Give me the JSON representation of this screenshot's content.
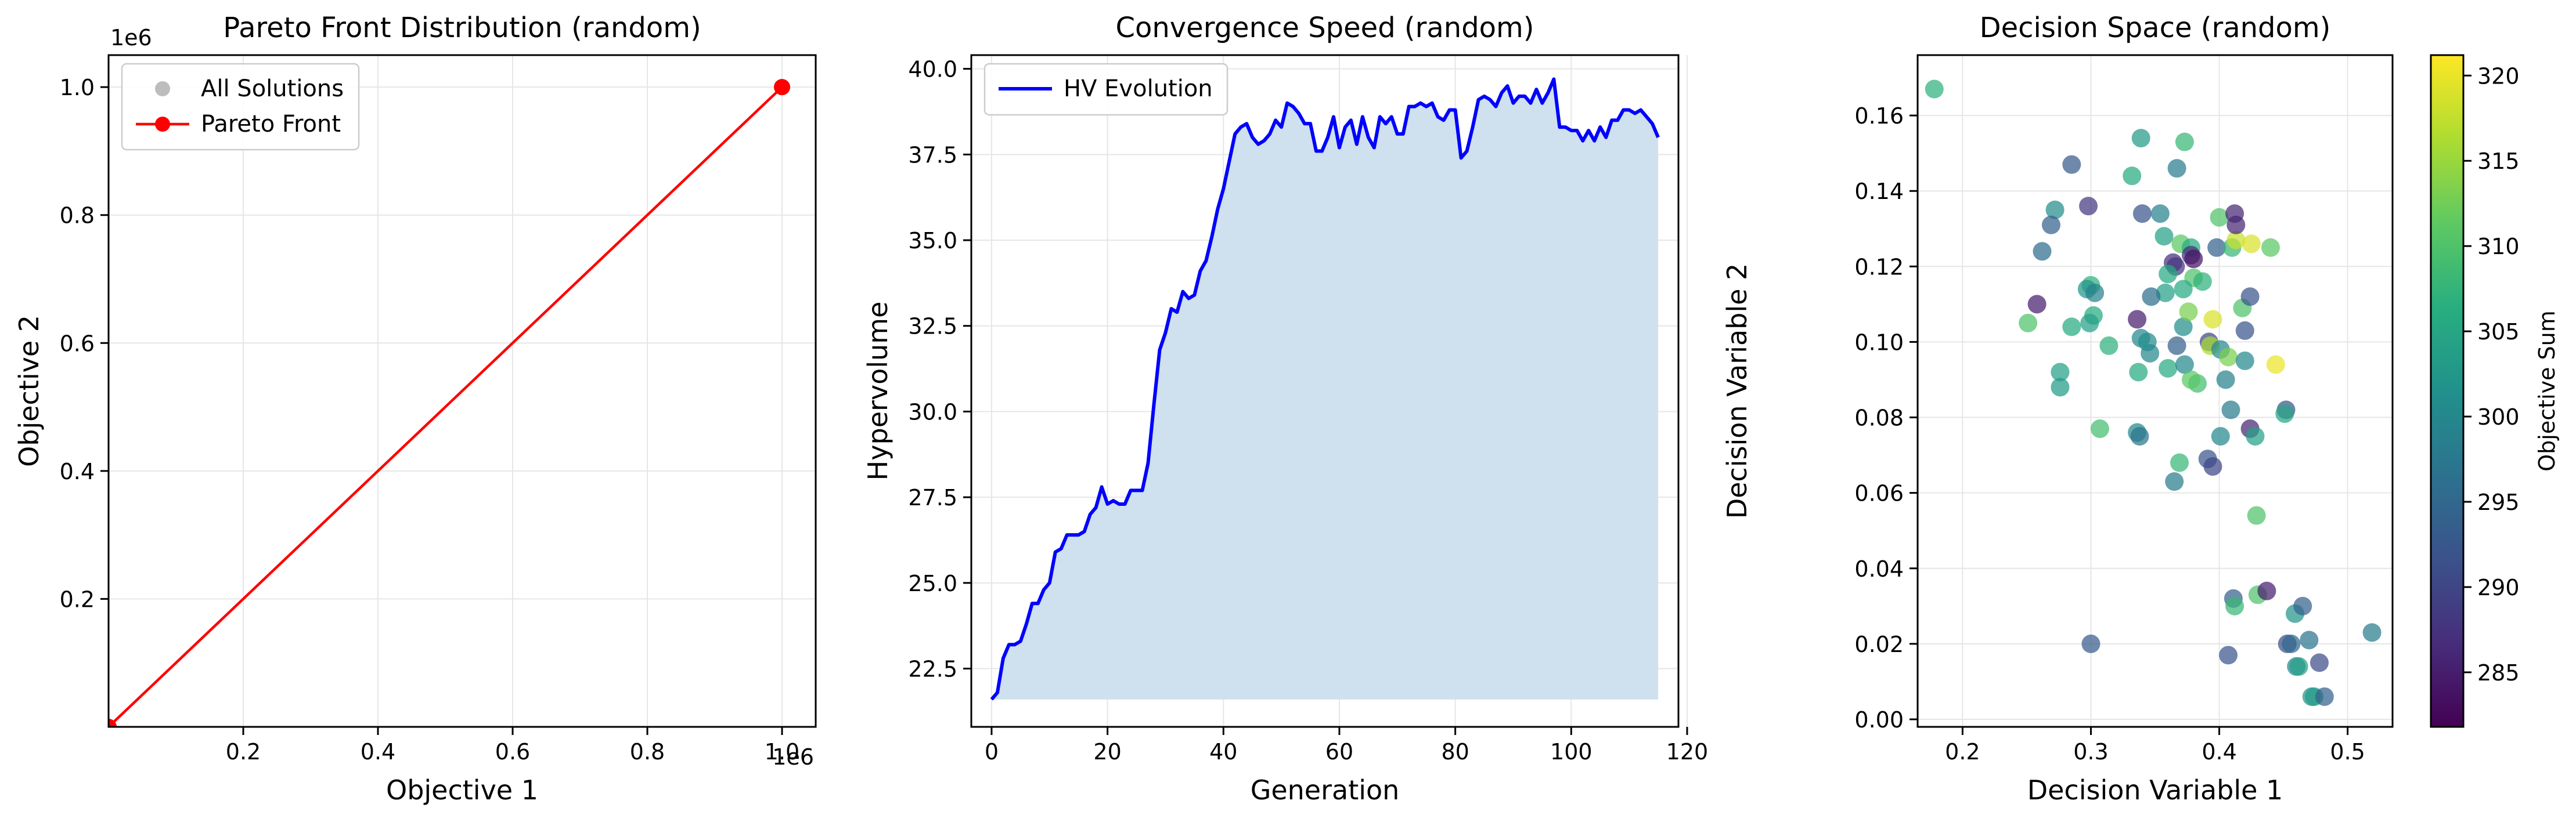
{
  "chart_data": [
    {
      "type": "scatter",
      "title": "Pareto Front Distribution (random)",
      "xlabel": "Objective 1",
      "ylabel": "Objective 2",
      "x_offset_label": "1e6",
      "y_offset_label": "1e6",
      "xlim": [
        0,
        1.05
      ],
      "ylim": [
        0,
        1.05
      ],
      "xticks": [
        0.2,
        0.4,
        0.6,
        0.8,
        1.0
      ],
      "xtick_labels": [
        "0.2",
        "0.4",
        "0.6",
        "0.8",
        "1.0"
      ],
      "yticks": [
        0.2,
        0.4,
        0.6,
        0.8,
        1.0
      ],
      "ytick_labels": [
        "0.2",
        "0.4",
        "0.6",
        "0.8",
        "1.0"
      ],
      "grid": true,
      "legend_position": "top-left",
      "series": [
        {
          "name": "All Solutions",
          "kind": "scatter",
          "color": "#bdbdbd",
          "x": [
            0.0,
            1.0
          ],
          "y": [
            0.0,
            1.0
          ]
        },
        {
          "name": "Pareto Front",
          "kind": "line-marker",
          "color": "#ff0000",
          "x": [
            0.0,
            1.0
          ],
          "y": [
            0.0,
            1.0
          ]
        }
      ]
    },
    {
      "type": "area",
      "title": "Convergence Speed (random)",
      "xlabel": "Generation",
      "ylabel": "Hypervolume",
      "xlim": [
        -3.5,
        118.5
      ],
      "ylim": [
        20.8,
        40.4
      ],
      "xticks": [
        0,
        20,
        40,
        60,
        80,
        100,
        120
      ],
      "xtick_labels": [
        "0",
        "20",
        "40",
        "60",
        "80",
        "100",
        "120"
      ],
      "yticks": [
        22.5,
        25.0,
        27.5,
        30.0,
        32.5,
        35.0,
        37.5,
        40.0
      ],
      "ytick_labels": [
        "22.5",
        "25.0",
        "27.5",
        "30.0",
        "32.5",
        "35.0",
        "37.5",
        "40.0"
      ],
      "fill_baseline": 21.6,
      "grid": true,
      "legend_position": "top-left",
      "series": [
        {
          "name": "HV Evolution",
          "color": "#0000ff",
          "fill_color": "#cfe0ee",
          "x": [
            0,
            1,
            2,
            3,
            4,
            5,
            6,
            7,
            8,
            9,
            10,
            11,
            12,
            13,
            14,
            15,
            16,
            17,
            18,
            19,
            20,
            21,
            22,
            23,
            24,
            25,
            26,
            27,
            28,
            29,
            30,
            31,
            32,
            33,
            34,
            35,
            36,
            37,
            38,
            39,
            40,
            41,
            42,
            43,
            44,
            45,
            46,
            47,
            48,
            49,
            50,
            51,
            52,
            53,
            54,
            55,
            56,
            57,
            58,
            59,
            60,
            61,
            62,
            63,
            64,
            65,
            66,
            67,
            68,
            69,
            70,
            71,
            72,
            73,
            74,
            75,
            76,
            77,
            78,
            79,
            80,
            81,
            82,
            83,
            84,
            85,
            86,
            87,
            88,
            89,
            90,
            91,
            92,
            93,
            94,
            95,
            96,
            97,
            98,
            99,
            100,
            101,
            102,
            103,
            104,
            105,
            106,
            107,
            108,
            109,
            110,
            111,
            112,
            113,
            114,
            115
          ],
          "y": [
            21.6,
            21.8,
            22.8,
            23.2,
            23.2,
            23.3,
            23.8,
            24.4,
            24.4,
            24.8,
            25.0,
            25.9,
            26.0,
            26.4,
            26.4,
            26.4,
            26.5,
            27.0,
            27.2,
            27.8,
            27.3,
            27.4,
            27.3,
            27.3,
            27.7,
            27.7,
            27.7,
            28.5,
            30.2,
            31.8,
            32.3,
            33.0,
            32.9,
            33.5,
            33.3,
            33.4,
            34.1,
            34.4,
            35.1,
            35.9,
            36.5,
            37.3,
            38.1,
            38.3,
            38.4,
            38.0,
            37.8,
            37.9,
            38.1,
            38.5,
            38.3,
            39.0,
            38.9,
            38.7,
            38.4,
            38.4,
            37.6,
            37.6,
            38.0,
            38.6,
            37.7,
            38.3,
            38.5,
            37.8,
            38.6,
            38.0,
            37.7,
            38.6,
            38.4,
            38.6,
            38.1,
            38.1,
            38.9,
            38.9,
            39.0,
            38.9,
            39.0,
            38.6,
            38.5,
            38.8,
            38.8,
            37.4,
            37.6,
            38.3,
            39.1,
            39.2,
            39.1,
            38.9,
            39.3,
            39.5,
            39.0,
            39.2,
            39.2,
            39.0,
            39.4,
            39.0,
            39.3,
            39.7,
            38.3,
            38.3,
            38.2,
            38.2,
            37.9,
            38.2,
            37.9,
            38.3,
            38.0,
            38.5,
            38.5,
            38.8,
            38.8,
            38.7,
            38.8,
            38.6,
            38.4,
            38.0
          ]
        }
      ]
    },
    {
      "type": "scatter",
      "title": "Decision Space (random)",
      "xlabel": "Decision Variable 1",
      "ylabel": "Decision Variable 2",
      "xlim": [
        0.165,
        0.535
      ],
      "ylim": [
        -0.002,
        0.176
      ],
      "xticks": [
        0.2,
        0.3,
        0.4,
        0.5
      ],
      "xtick_labels": [
        "0.2",
        "0.3",
        "0.4",
        "0.5"
      ],
      "yticks": [
        0.0,
        0.02,
        0.04,
        0.06,
        0.08,
        0.1,
        0.12,
        0.14,
        0.16
      ],
      "ytick_labels": [
        "0.00",
        "0.02",
        "0.04",
        "0.06",
        "0.08",
        "0.10",
        "0.12",
        "0.14",
        "0.16"
      ],
      "grid": true,
      "colormap": "viridis",
      "colorbar": {
        "label": "Objective Sum",
        "range": [
          281.8,
          321.2
        ],
        "ticks": [
          285,
          290,
          295,
          300,
          305,
          310,
          315,
          320
        ],
        "tick_labels": [
          "285",
          "290",
          "295",
          "300",
          "305",
          "310",
          "315",
          "320"
        ]
      },
      "points": [
        [
          0.178,
          0.167,
          307
        ],
        [
          0.285,
          0.147,
          293
        ],
        [
          0.298,
          0.136,
          288
        ],
        [
          0.272,
          0.135,
          301
        ],
        [
          0.269,
          0.131,
          294
        ],
        [
          0.262,
          0.124,
          296
        ],
        [
          0.258,
          0.11,
          285
        ],
        [
          0.251,
          0.105,
          310
        ],
        [
          0.285,
          0.104,
          306
        ],
        [
          0.3,
          0.115,
          307
        ],
        [
          0.297,
          0.114,
          302
        ],
        [
          0.303,
          0.113,
          299
        ],
        [
          0.302,
          0.107,
          306
        ],
        [
          0.299,
          0.105,
          304
        ],
        [
          0.314,
          0.099,
          307
        ],
        [
          0.276,
          0.092,
          304
        ],
        [
          0.276,
          0.088,
          303
        ],
        [
          0.307,
          0.077,
          309
        ],
        [
          0.3,
          0.02,
          293
        ],
        [
          0.332,
          0.144,
          306
        ],
        [
          0.339,
          0.154,
          303
        ],
        [
          0.367,
          0.146,
          298
        ],
        [
          0.373,
          0.153,
          308
        ],
        [
          0.34,
          0.134,
          292
        ],
        [
          0.354,
          0.134,
          299
        ],
        [
          0.357,
          0.128,
          304
        ],
        [
          0.37,
          0.126,
          311
        ],
        [
          0.378,
          0.125,
          306
        ],
        [
          0.378,
          0.123,
          287
        ],
        [
          0.38,
          0.122,
          284
        ],
        [
          0.364,
          0.121,
          287
        ],
        [
          0.366,
          0.12,
          288
        ],
        [
          0.36,
          0.118,
          306
        ],
        [
          0.38,
          0.117,
          310
        ],
        [
          0.387,
          0.116,
          307
        ],
        [
          0.372,
          0.114,
          306
        ],
        [
          0.358,
          0.113,
          304
        ],
        [
          0.347,
          0.112,
          296
        ],
        [
          0.336,
          0.106,
          285
        ],
        [
          0.339,
          0.101,
          300
        ],
        [
          0.344,
          0.1,
          301
        ],
        [
          0.346,
          0.097,
          300
        ],
        [
          0.337,
          0.092,
          306
        ],
        [
          0.36,
          0.093,
          306
        ],
        [
          0.372,
          0.104,
          301
        ],
        [
          0.376,
          0.108,
          313
        ],
        [
          0.367,
          0.099,
          294
        ],
        [
          0.373,
          0.094,
          300
        ],
        [
          0.383,
          0.089,
          309
        ],
        [
          0.378,
          0.09,
          311
        ],
        [
          0.336,
          0.076,
          300
        ],
        [
          0.338,
          0.075,
          297
        ],
        [
          0.369,
          0.068,
          308
        ],
        [
          0.365,
          0.063,
          298
        ],
        [
          0.391,
          0.069,
          292
        ],
        [
          0.395,
          0.067,
          290
        ],
        [
          0.392,
          0.1,
          290
        ],
        [
          0.393,
          0.099,
          316
        ],
        [
          0.395,
          0.106,
          319
        ],
        [
          0.398,
          0.125,
          294
        ],
        [
          0.4,
          0.133,
          310
        ],
        [
          0.401,
          0.098,
          300
        ],
        [
          0.407,
          0.096,
          313
        ],
        [
          0.41,
          0.125,
          308
        ],
        [
          0.413,
          0.127,
          318
        ],
        [
          0.412,
          0.134,
          286
        ],
        [
          0.413,
          0.131,
          286
        ],
        [
          0.418,
          0.109,
          310
        ],
        [
          0.424,
          0.112,
          292
        ],
        [
          0.42,
          0.103,
          292
        ],
        [
          0.42,
          0.095,
          300
        ],
        [
          0.405,
          0.09,
          299
        ],
        [
          0.409,
          0.082,
          298
        ],
        [
          0.401,
          0.075,
          300
        ],
        [
          0.424,
          0.077,
          286
        ],
        [
          0.428,
          0.075,
          304
        ],
        [
          0.425,
          0.126,
          319
        ],
        [
          0.44,
          0.125,
          311
        ],
        [
          0.444,
          0.094,
          320
        ],
        [
          0.452,
          0.082,
          292
        ],
        [
          0.451,
          0.081,
          305
        ],
        [
          0.429,
          0.054,
          310
        ],
        [
          0.43,
          0.033,
          310
        ],
        [
          0.437,
          0.034,
          285
        ],
        [
          0.411,
          0.032,
          294
        ],
        [
          0.412,
          0.03,
          308
        ],
        [
          0.407,
          0.017,
          292
        ],
        [
          0.453,
          0.02,
          291
        ],
        [
          0.456,
          0.02,
          295
        ],
        [
          0.459,
          0.028,
          302
        ],
        [
          0.465,
          0.03,
          294
        ],
        [
          0.47,
          0.021,
          297
        ],
        [
          0.46,
          0.014,
          300
        ],
        [
          0.462,
          0.014,
          304
        ],
        [
          0.472,
          0.006,
          302
        ],
        [
          0.474,
          0.006,
          303
        ],
        [
          0.478,
          0.015,
          291
        ],
        [
          0.482,
          0.006,
          294
        ],
        [
          0.519,
          0.023,
          298
        ]
      ]
    }
  ]
}
